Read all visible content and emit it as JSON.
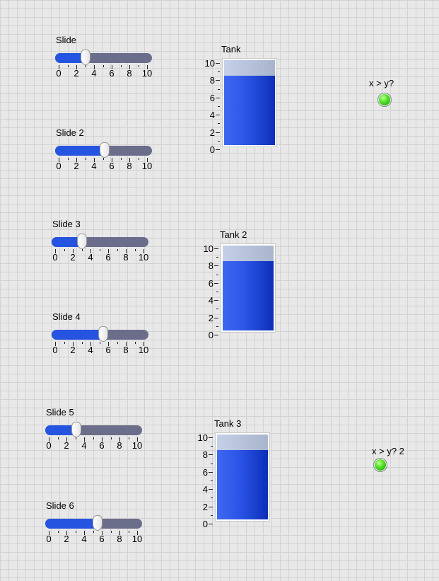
{
  "sliders": [
    {
      "label": "Slide",
      "value": 3.0,
      "scale_labels": [
        "0",
        "2",
        "4",
        "6",
        "8",
        "10"
      ]
    },
    {
      "label": "Slide 2",
      "value": 5.2,
      "scale_labels": [
        "0",
        "2",
        "4",
        "6",
        "8",
        "10"
      ]
    },
    {
      "label": "Slide 3",
      "value": 3.0,
      "scale_labels": [
        "0",
        "2",
        "4",
        "6",
        "8",
        "10"
      ]
    },
    {
      "label": "Slide 4",
      "value": 5.4,
      "scale_labels": [
        "0",
        "2",
        "4",
        "6",
        "8",
        "10"
      ]
    },
    {
      "label": "Slide 5",
      "value": 3.1,
      "scale_labels": [
        "0",
        "2",
        "4",
        "6",
        "8",
        "10"
      ]
    },
    {
      "label": "Slide 6",
      "value": 5.5,
      "scale_labels": [
        "0",
        "2",
        "4",
        "6",
        "8",
        "10"
      ]
    }
  ],
  "slider_range": [
    0,
    10
  ],
  "tanks": [
    {
      "label": "Tank",
      "level": 8,
      "scale_labels": [
        "10",
        "8",
        "6",
        "4",
        "2",
        "0"
      ]
    },
    {
      "label": "Tank 2",
      "level": 8,
      "scale_labels": [
        "10",
        "8",
        "6",
        "4",
        "2",
        "0"
      ]
    },
    {
      "label": "Tank 3",
      "level": 8,
      "scale_labels": [
        "10",
        "8",
        "6",
        "4",
        "2",
        "0"
      ]
    }
  ],
  "tank_range": [
    0,
    10
  ],
  "indicators": [
    {
      "label": "x > y?",
      "state": "on",
      "color": "#3ddc1a"
    },
    {
      "label": "x > y? 2",
      "state": "on",
      "color": "#3ddc1a"
    }
  ],
  "colors": {
    "slider_fill": "#2554e0",
    "slider_track": "#6a6e8a",
    "tank_liquid": "#2a54e6",
    "tank_empty": "#b8c3da",
    "led_on": "#3ddc1a"
  }
}
